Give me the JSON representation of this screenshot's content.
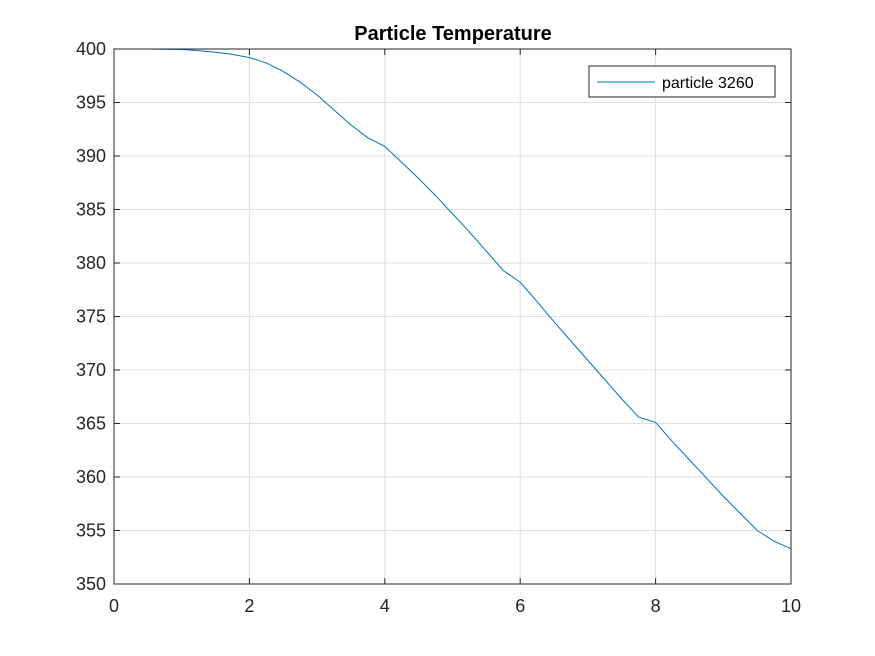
{
  "chart_data": {
    "type": "line",
    "title": "Particle Temperature",
    "xlabel": "",
    "ylabel": "",
    "xlim": [
      0,
      10
    ],
    "ylim": [
      350,
      400
    ],
    "xticks": [
      0,
      2,
      4,
      6,
      8,
      10
    ],
    "xtick_labels": [
      "0",
      "2",
      "4",
      "6",
      "8",
      "10"
    ],
    "yticks": [
      350,
      355,
      360,
      365,
      370,
      375,
      380,
      385,
      390,
      395,
      400
    ],
    "ytick_labels": [
      "350",
      "355",
      "360",
      "365",
      "370",
      "375",
      "380",
      "385",
      "390",
      "395",
      "400"
    ],
    "grid": true,
    "legend_position": "top-right",
    "series": [
      {
        "name": "particle 3260",
        "color": "#0072BD",
        "x": [
          0,
          0.5,
          1,
          1.25,
          1.5,
          1.75,
          2,
          2.25,
          2.5,
          2.75,
          3,
          3.25,
          3.5,
          3.75,
          4,
          4.25,
          4.5,
          4.75,
          5,
          5.25,
          5.5,
          5.75,
          6,
          6.25,
          6.5,
          6.75,
          7,
          7.25,
          7.5,
          7.75,
          8,
          8.25,
          8.5,
          8.75,
          9,
          9.25,
          9.5,
          9.75,
          10
        ],
        "y": [
          400.0,
          400.0,
          399.95,
          399.85,
          399.7,
          399.5,
          399.2,
          398.7,
          397.9,
          396.9,
          395.7,
          394.3,
          392.9,
          391.7,
          390.9,
          389.4,
          387.9,
          386.3,
          384.6,
          382.9,
          381.1,
          379.3,
          378.2,
          376.4,
          374.5,
          372.7,
          370.9,
          369.1,
          367.3,
          365.6,
          365.1,
          363.3,
          361.6,
          359.9,
          358.2,
          356.6,
          355.0,
          354.0,
          353.3
        ]
      }
    ]
  }
}
